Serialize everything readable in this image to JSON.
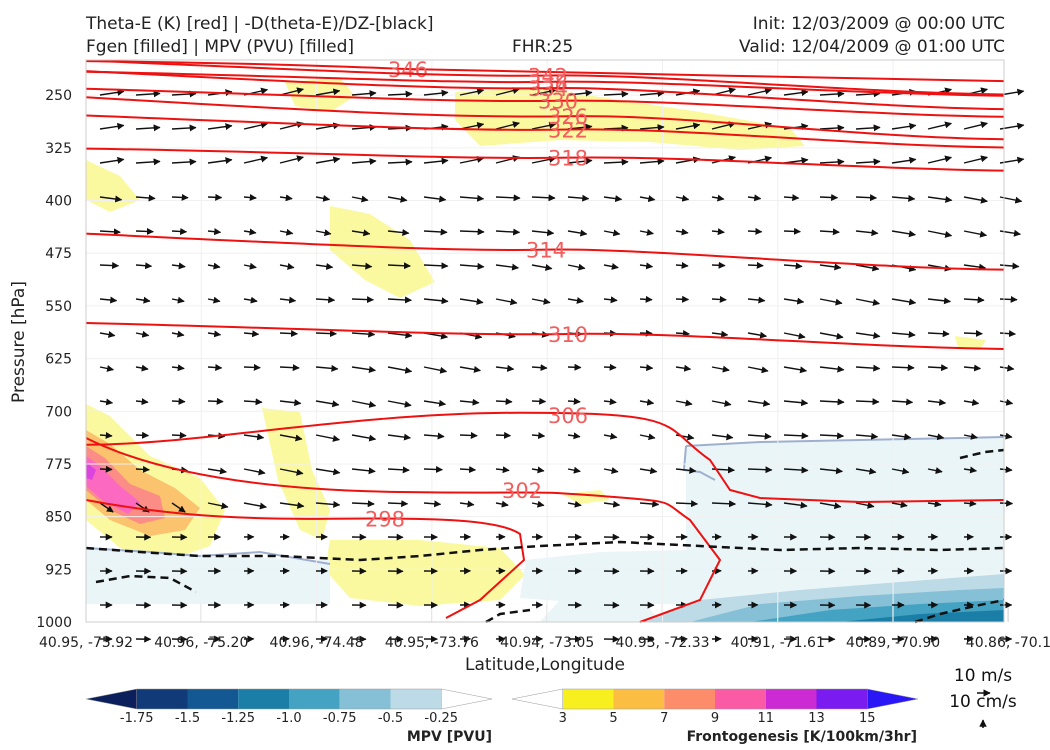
{
  "header": {
    "title_left_1": "Theta-E (K) [red] | -D(theta-E)/DZ-[black]",
    "title_left_2": "Fgen [filled] | MPV (PVU) [filled]",
    "fhr": "FHR:25",
    "init": "Init: 12/03/2009 @ 00:00 UTC",
    "valid": "Valid: 12/04/2009 @ 01:00 UTC"
  },
  "chart_data": {
    "type": "cross-section",
    "ylabel": "Pressure [hPa]",
    "xlabel": "Latitude,Longitude",
    "y_ticks": [
      "250",
      "325",
      "400",
      "475",
      "550",
      "625",
      "700",
      "775",
      "850",
      "925",
      "1000"
    ],
    "x_ticks": [
      "40.95, -75.92",
      "40.96, -75.20",
      "40.96, -74.48",
      "40.95, -73.76",
      "40.94, -73.05",
      "40.93, -72.33",
      "40.91, -71.61",
      "40.89, -70.90",
      "40.86, -70.1"
    ],
    "ylim": [
      1000,
      200
    ],
    "theta_e_contours": [
      {
        "label": "346",
        "pressure": 213
      },
      {
        "label": "342",
        "pressure": 222
      },
      {
        "label": "338",
        "pressure": 231
      },
      {
        "label": "334",
        "pressure": 240
      },
      {
        "label": "330",
        "pressure": 258
      },
      {
        "label": "326",
        "pressure": 280
      },
      {
        "label": "322",
        "pressure": 299
      },
      {
        "label": "318",
        "pressure": 339
      },
      {
        "label": "314",
        "pressure": 470
      },
      {
        "label": "310",
        "pressure": 590
      },
      {
        "label": "306",
        "pressure": 705
      },
      {
        "label": "302",
        "pressure": 812
      },
      {
        "label": "298",
        "pressure": 853
      }
    ],
    "grid": true
  },
  "wind_key": {
    "label_1": "10 m/s",
    "label_2": "10 cm/s"
  },
  "mpv_colorbar": {
    "title": "MPV [PVU]",
    "ticks": [
      "-1.75",
      "-1.5",
      "-1.25",
      "-1.0",
      "-0.75",
      "-0.5",
      "-0.25"
    ],
    "colors": [
      "#0b1f5c",
      "#103a78",
      "#135892",
      "#1b7ea7",
      "#44a3c2",
      "#85c0d6",
      "#bcdbe7",
      "#ffffff"
    ]
  },
  "fgen_colorbar": {
    "title": "Frontogenesis [K/100km/3hr]",
    "ticks": [
      "3",
      "5",
      "7",
      "9",
      "11",
      "13",
      "15"
    ],
    "colors": [
      "#ffffff",
      "#f8f01e",
      "#fbbd42",
      "#fc8c6a",
      "#fb5aa4",
      "#cc2ad2",
      "#7a1bef",
      "#2a17f5"
    ]
  }
}
